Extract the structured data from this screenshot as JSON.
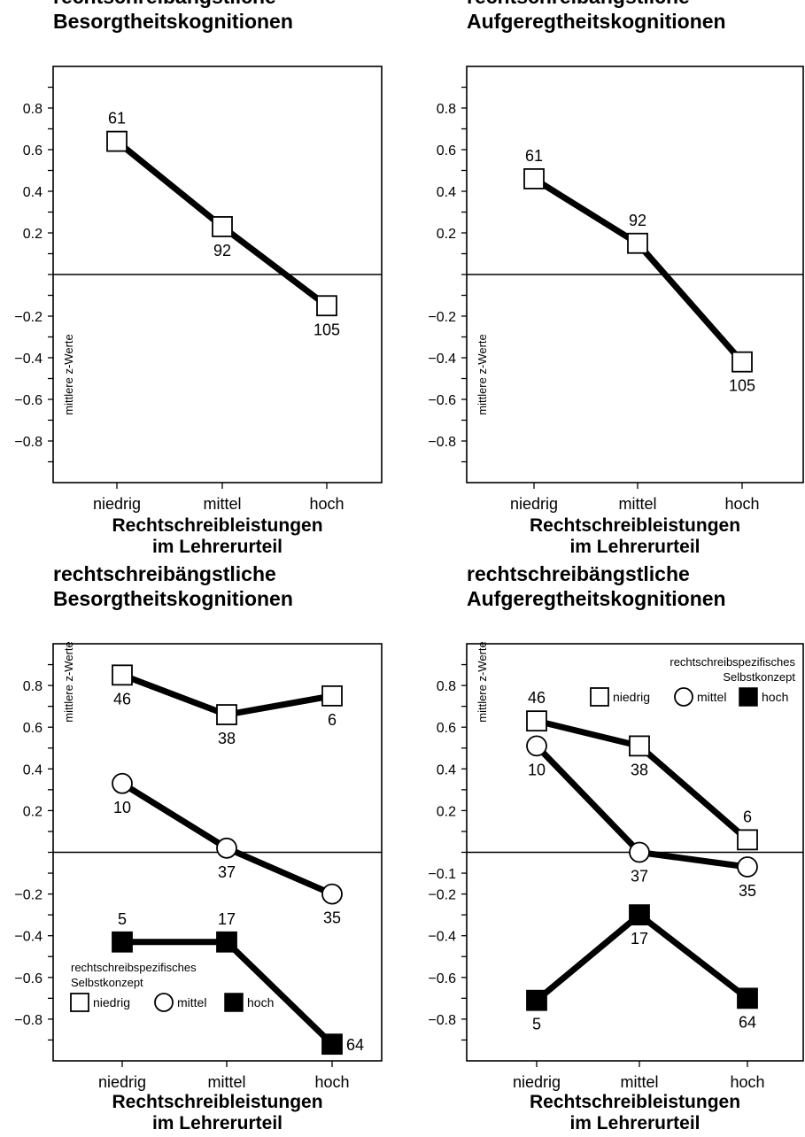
{
  "chart_data": [
    {
      "type": "line",
      "title": [
        "rechtschreibängstliche",
        "Besorgtheitskognitionen"
      ],
      "ylabel": "mittlere z-Werte",
      "xlabel": [
        "Rechtschreibleistungen",
        "im Lehrerurteil"
      ],
      "categories": [
        "niedrig",
        "mittel",
        "hoch"
      ],
      "ylim": [
        -1.0,
        1.0
      ],
      "yticks": [
        0.8,
        0.6,
        0.4,
        0.2,
        -0.2,
        -0.4,
        -0.6,
        -0.8
      ],
      "series": [
        {
          "marker": "square-open",
          "values": [
            0.64,
            0.23,
            -0.15
          ],
          "labels": [
            "61",
            "92",
            "105"
          ],
          "label_pos": [
            "above",
            "below",
            "below"
          ]
        }
      ]
    },
    {
      "type": "line",
      "title": [
        "rechtschreibängstliche",
        "Aufgeregtheitskognitionen"
      ],
      "ylabel": "mittlere z-Werte",
      "xlabel": [
        "Rechtschreibleistungen",
        "im Lehrerurteil"
      ],
      "categories": [
        "niedrig",
        "mittel",
        "hoch"
      ],
      "ylim": [
        -1.0,
        1.0
      ],
      "yticks": [
        0.8,
        0.6,
        0.4,
        0.2,
        -0.2,
        -0.4,
        -0.6,
        -0.8
      ],
      "series": [
        {
          "marker": "square-open",
          "values": [
            0.46,
            0.15,
            -0.42
          ],
          "labels": [
            "61",
            "92",
            "105"
          ],
          "label_pos": [
            "above",
            "above",
            "below"
          ]
        }
      ]
    },
    {
      "type": "line",
      "title": [
        "rechtschreibängstliche",
        "Besorgtheitskognitionen"
      ],
      "ylabel": "mittlere z-Werte",
      "xlabel": [
        "Rechtschreibleistungen",
        "im Lehrerurteil"
      ],
      "categories": [
        "niedrig",
        "mittel",
        "hoch"
      ],
      "ylim": [
        -1.0,
        1.0
      ],
      "yticks": [
        0.8,
        0.6,
        0.4,
        0.2,
        -0.2,
        -0.4,
        -0.6,
        -0.8
      ],
      "legend": {
        "title": [
          "rechtschreibspezifisches",
          "Selbstkonzept"
        ],
        "placement": "bottom-left",
        "entries": [
          "niedrig",
          "mittel",
          "hoch"
        ]
      },
      "series": [
        {
          "name": "niedrig",
          "marker": "square-open",
          "values": [
            0.85,
            0.66,
            0.75
          ],
          "labels": [
            "46",
            "38",
            "6"
          ],
          "label_pos": [
            "below",
            "below",
            "below"
          ]
        },
        {
          "name": "mittel",
          "marker": "circle-open",
          "values": [
            0.33,
            0.02,
            -0.2
          ],
          "labels": [
            "10",
            "37",
            "35"
          ],
          "label_pos": [
            "below",
            "below",
            "below"
          ]
        },
        {
          "name": "hoch",
          "marker": "square-filled",
          "values": [
            -0.43,
            -0.43,
            -0.92
          ],
          "labels": [
            "5",
            "17",
            "64"
          ],
          "label_pos": [
            "above",
            "above",
            "right"
          ]
        }
      ]
    },
    {
      "type": "line",
      "title": [
        "rechtschreibängstliche",
        "Aufgeregtheitskognitionen"
      ],
      "ylabel": "mittlere z-Werte",
      "xlabel": [
        "Rechtschreibleistungen",
        "im Lehrerurteil"
      ],
      "categories": [
        "niedrig",
        "mittel",
        "hoch"
      ],
      "ylim": [
        -1.0,
        1.0
      ],
      "yticks": [
        0.8,
        0.6,
        0.4,
        0.2,
        -0.1,
        -0.2,
        -0.4,
        -0.6,
        -0.8
      ],
      "legend": {
        "title": [
          "rechtschreibspezifisches",
          "Selbstkonzept"
        ],
        "placement": "top-right",
        "entries": [
          "niedrig",
          "mittel",
          "hoch"
        ]
      },
      "series": [
        {
          "name": "niedrig",
          "marker": "square-open",
          "values": [
            0.63,
            0.51,
            0.06
          ],
          "labels": [
            "46",
            "38",
            "6"
          ],
          "label_pos": [
            "above",
            "below",
            "above"
          ]
        },
        {
          "name": "mittel",
          "marker": "circle-open",
          "values": [
            0.51,
            0.0,
            -0.07
          ],
          "labels": [
            "10",
            "37",
            "35"
          ],
          "label_pos": [
            "below",
            "below",
            "below"
          ]
        },
        {
          "name": "hoch",
          "marker": "square-filled",
          "values": [
            -0.71,
            -0.3,
            -0.7
          ],
          "labels": [
            "5",
            "17",
            "64"
          ],
          "label_pos": [
            "below",
            "below",
            "below"
          ]
        }
      ]
    }
  ]
}
